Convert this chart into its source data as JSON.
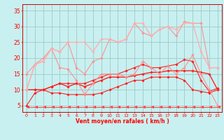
{
  "xlabel": "Vent moyen/en rafales ( km/h )",
  "xlim": [
    -0.5,
    23.5
  ],
  "ylim": [
    3,
    37
  ],
  "yticks": [
    5,
    10,
    15,
    20,
    25,
    30,
    35
  ],
  "xticks": [
    0,
    1,
    2,
    3,
    4,
    5,
    6,
    7,
    8,
    9,
    10,
    11,
    12,
    13,
    14,
    15,
    16,
    17,
    18,
    19,
    20,
    21,
    22,
    23
  ],
  "bg_color": "#c8f0f0",
  "grid_color": "#a0c8c8",
  "series": [
    {
      "x": [
        0,
        1,
        2,
        3,
        4,
        5,
        6,
        7,
        8,
        9,
        10,
        11,
        12,
        13,
        14,
        15,
        16,
        17,
        18,
        19,
        20,
        21,
        22,
        23
      ],
      "y": [
        5,
        9,
        10,
        9,
        9,
        8.5,
        8.5,
        8.5,
        8.5,
        9,
        10,
        11,
        12,
        13,
        13,
        14,
        14,
        14,
        14,
        13,
        10,
        9.5,
        9,
        10
      ],
      "color": "#ff2020",
      "lw": 0.8,
      "marker": "D",
      "ms": 1.8
    },
    {
      "x": [
        0,
        1,
        2,
        3,
        4,
        5,
        6,
        7,
        8,
        9,
        10,
        11,
        12,
        13,
        14,
        15,
        16,
        17,
        18,
        19,
        20,
        21,
        22,
        23
      ],
      "y": [
        10,
        10,
        10,
        11,
        12,
        11,
        12,
        11,
        12,
        13,
        14,
        14,
        14,
        14.5,
        15,
        15.5,
        15.5,
        16,
        16,
        16,
        16,
        15.5,
        15,
        10
      ],
      "color": "#ff2020",
      "lw": 1.0,
      "marker": "D",
      "ms": 1.8
    },
    {
      "x": [
        0,
        1,
        2,
        3,
        4,
        5,
        6,
        7,
        8,
        9,
        10,
        11,
        12,
        13,
        14,
        15,
        16,
        17,
        18,
        19,
        20,
        21,
        22,
        23
      ],
      "y": [
        10,
        10,
        10,
        11,
        12,
        12,
        12,
        12,
        13,
        14,
        15,
        15,
        16,
        17,
        18,
        17,
        17,
        17.5,
        18,
        19.5,
        19,
        13,
        9.5,
        10.5
      ],
      "color": "#ff2020",
      "lw": 0.8,
      "marker": "D",
      "ms": 1.8
    },
    {
      "x": [
        0,
        1,
        2,
        3,
        4,
        5,
        6,
        7,
        8,
        9,
        10,
        11,
        12,
        13,
        14,
        15,
        16,
        17,
        18,
        19,
        20,
        21,
        22,
        23
      ],
      "y": [
        10,
        18,
        19,
        23,
        17,
        16.5,
        13,
        8.5,
        12,
        15,
        15,
        15,
        14,
        15,
        19,
        17,
        15,
        17.5,
        15,
        17,
        21,
        15,
        10,
        5
      ],
      "color": "#ff9090",
      "lw": 0.8,
      "marker": "D",
      "ms": 1.8
    },
    {
      "x": [
        0,
        1,
        2,
        3,
        4,
        5,
        6,
        7,
        8,
        9,
        10,
        11,
        12,
        13,
        14,
        15,
        16,
        17,
        18,
        19,
        20,
        21,
        22,
        23
      ],
      "y": [
        15,
        18,
        20,
        23,
        22,
        25,
        17,
        15,
        19,
        20,
        26,
        25,
        26,
        31,
        28,
        27,
        29,
        30,
        27,
        31.5,
        31,
        31,
        17,
        17
      ],
      "color": "#ff9090",
      "lw": 0.8,
      "marker": "D",
      "ms": 1.8
    },
    {
      "x": [
        0,
        1,
        2,
        3,
        4,
        5,
        6,
        7,
        8,
        9,
        10,
        11,
        12,
        13,
        14,
        15,
        16,
        17,
        18,
        19,
        20,
        21,
        22,
        23
      ],
      "y": [
        10,
        18,
        19,
        23,
        22,
        25,
        25,
        25,
        22,
        26,
        26,
        25,
        26,
        31,
        31,
        27,
        29,
        30,
        29,
        31,
        31,
        22,
        17,
        17
      ],
      "color": "#ffb0b0",
      "lw": 1.0,
      "marker": "D",
      "ms": 1.8
    },
    {
      "x": [
        0,
        1,
        2,
        3,
        4,
        5,
        6,
        7,
        8,
        9,
        10,
        11,
        12,
        13,
        14,
        15,
        16,
        17,
        18,
        19,
        20,
        21,
        22,
        23
      ],
      "y": [
        4.5,
        4.5,
        4.5,
        4.5,
        4.5,
        4.5,
        4.5,
        4.5,
        4.5,
        4.5,
        4.5,
        4.5,
        4.5,
        4.5,
        4.5,
        4.5,
        4.5,
        4.5,
        4.5,
        4.5,
        4.5,
        4.5,
        4.5,
        4.5
      ],
      "color": "#ff4040",
      "lw": 0.7,
      "marker": 4,
      "ms": 3.5
    }
  ]
}
